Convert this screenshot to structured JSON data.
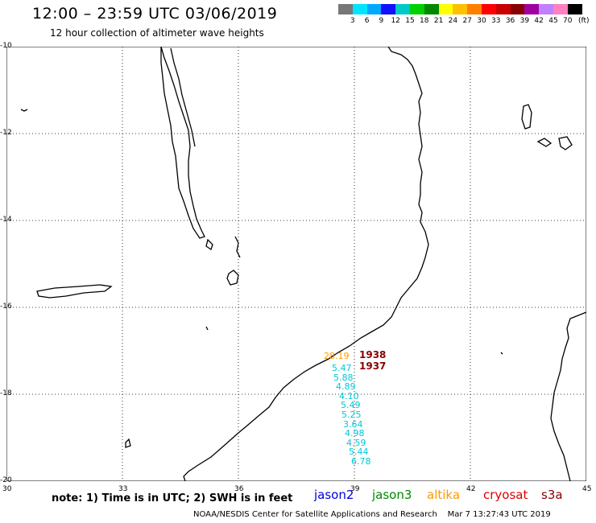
{
  "header": {
    "title": "12:00 – 23:59 UTC 03/06/2019",
    "subtitle": "12 hour collection of altimeter wave heights"
  },
  "scale": {
    "colors": [
      "#777777",
      "#00e5ff",
      "#00a8ff",
      "#1010ff",
      "#00c8c8",
      "#00d000",
      "#008800",
      "#ffff00",
      "#ffc000",
      "#ff8000",
      "#ff0000",
      "#c80000",
      "#880000",
      "#a000a0",
      "#c080ff",
      "#ff80c0",
      "#000000"
    ],
    "labels": [
      "3",
      "6",
      "9",
      "12",
      "15",
      "18",
      "21",
      "24",
      "27",
      "30",
      "33",
      "36",
      "39",
      "42",
      "45",
      "70"
    ],
    "unit": "(ft)"
  },
  "axes": {
    "lat_labels": [
      "-10",
      "-12",
      "-14",
      "-16",
      "-18",
      "-20"
    ],
    "lon_labels": [
      "30",
      "33",
      "36",
      "39",
      "42",
      "45"
    ]
  },
  "annotations": {
    "altika_value": "28.19",
    "time_1938": "1938",
    "time_1937": "1937",
    "swh_values": [
      "5.47",
      "5.88",
      "4.89",
      "4.10",
      "5.49",
      "5.25",
      "3.64",
      "4.98",
      "4.59",
      "5.44",
      "6.78"
    ]
  },
  "legend": {
    "note": "note: 1) Time is in UTC; 2) SWH is in feet",
    "satellites": [
      {
        "name": "jason2",
        "color": "#0000dd"
      },
      {
        "name": "jason3",
        "color": "#008800"
      },
      {
        "name": "altika",
        "color": "#ff9900"
      },
      {
        "name": "cryosat",
        "color": "#dd0000"
      },
      {
        "name": "s3a",
        "color": "#880000"
      }
    ]
  },
  "footer": {
    "credit": "NOAA/NESDIS Center for Satellite Applications and Research",
    "timestamp": "Mar  7 13:27:43 UTC 2019"
  }
}
